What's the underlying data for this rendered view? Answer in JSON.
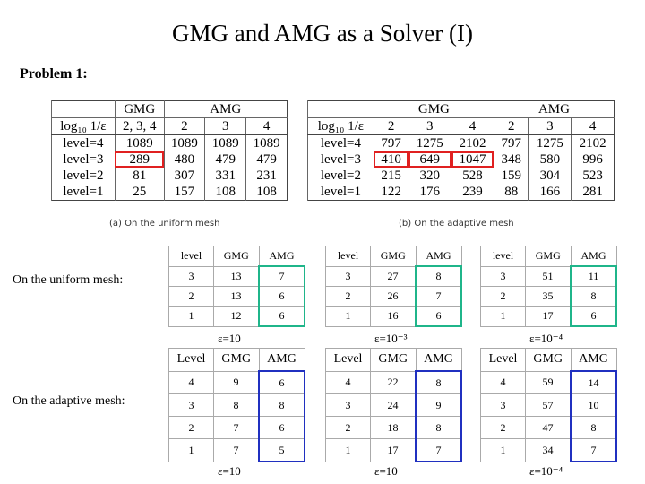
{
  "title": "GMG and AMG as a Solver (I)",
  "problem": "Problem 1:",
  "table_a": {
    "group_headers": [
      "GMG",
      "AMG"
    ],
    "header": [
      "log₁₀ 1/ε",
      "2, 3, 4",
      "2",
      "3",
      "4"
    ],
    "rows": [
      [
        "level=4",
        1089,
        1089,
        1089,
        1089
      ],
      [
        "level=3",
        289,
        480,
        479,
        479
      ],
      [
        "level=2",
        81,
        307,
        331,
        231
      ],
      [
        "level=1",
        25,
        157,
        108,
        108
      ]
    ],
    "caption": "(a) On the uniform mesh"
  },
  "table_b": {
    "group_headers": [
      "GMG",
      "AMG"
    ],
    "header": [
      "log₁₀ 1/ε",
      "2",
      "3",
      "4",
      "2",
      "3",
      "4"
    ],
    "rows": [
      [
        "level=4",
        797,
        1275,
        2102,
        797,
        1275,
        2102
      ],
      [
        "level=3",
        410,
        649,
        1047,
        348,
        580,
        996
      ],
      [
        "level=2",
        215,
        320,
        528,
        159,
        304,
        523
      ],
      [
        "level=1",
        122,
        176,
        239,
        88,
        166,
        281
      ]
    ],
    "caption": "(b) On the adaptive mesh"
  },
  "uniform_label": "On the uniform mesh:",
  "adaptive_label": "On the adaptive mesh:",
  "uniform_tables": [
    {
      "header": [
        "level",
        "GMG",
        "AMG"
      ],
      "rows": [
        [
          3,
          13,
          7
        ],
        [
          2,
          13,
          6
        ],
        [
          1,
          12,
          6
        ]
      ],
      "caption": "ε=10"
    },
    {
      "header": [
        "level",
        "GMG",
        "AMG"
      ],
      "rows": [
        [
          3,
          27,
          8
        ],
        [
          2,
          26,
          7
        ],
        [
          1,
          16,
          6
        ]
      ],
      "caption": "ε=10⁻³"
    },
    {
      "header": [
        "level",
        "GMG",
        "AMG"
      ],
      "rows": [
        [
          3,
          51,
          11
        ],
        [
          2,
          35,
          8
        ],
        [
          1,
          17,
          6
        ]
      ],
      "caption": "ε=10⁻⁴"
    }
  ],
  "adaptive_tables": [
    {
      "header": [
        "Level",
        "GMG",
        "AMG"
      ],
      "rows": [
        [
          4,
          9,
          6
        ],
        [
          3,
          8,
          8
        ],
        [
          2,
          7,
          6
        ],
        [
          1,
          7,
          5
        ]
      ],
      "caption": "ε=10"
    },
    {
      "header": [
        "Level",
        "GMG",
        "AMG"
      ],
      "rows": [
        [
          4,
          22,
          8
        ],
        [
          3,
          24,
          9
        ],
        [
          2,
          18,
          8
        ],
        [
          1,
          17,
          7
        ]
      ],
      "caption": "ε=10"
    },
    {
      "header": [
        "Level",
        "GMG",
        "AMG"
      ],
      "rows": [
        [
          4,
          59,
          14
        ],
        [
          3,
          57,
          10
        ],
        [
          2,
          47,
          8
        ],
        [
          1,
          34,
          7
        ]
      ],
      "caption": "ε=10⁻⁴"
    }
  ]
}
